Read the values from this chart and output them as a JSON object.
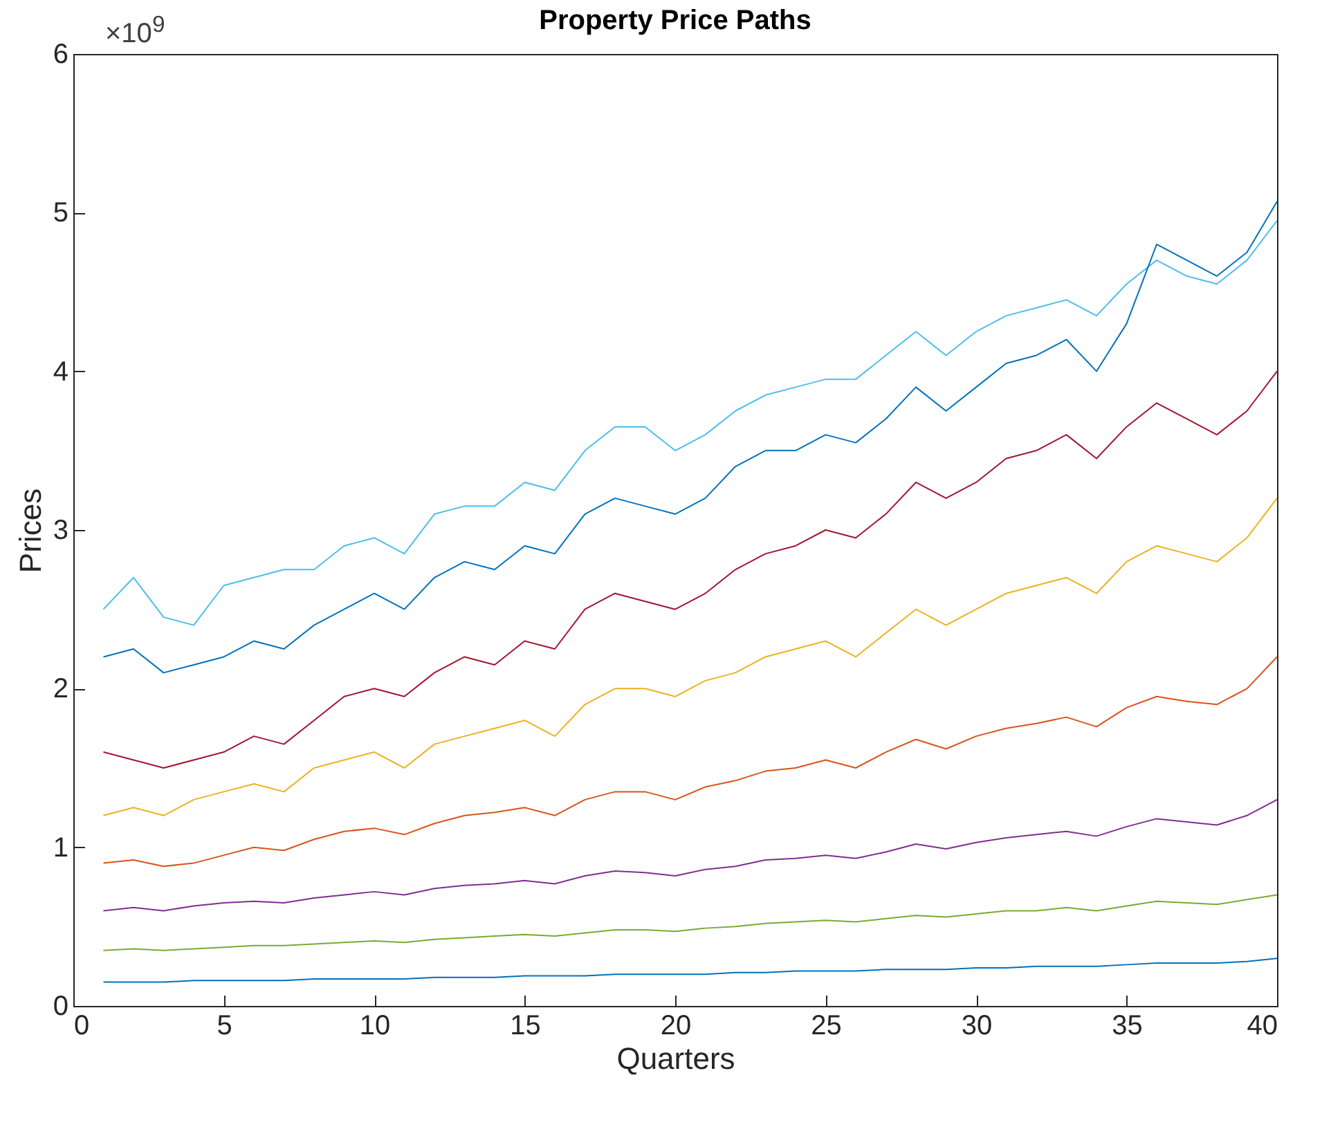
{
  "chart_data": {
    "type": "line",
    "title": "Property Price Paths",
    "xlabel": "Quarters",
    "ylabel": "Prices",
    "annotations": [
      "×10$^{9}$"
    ],
    "x": [
      1,
      2,
      3,
      4,
      5,
      6,
      7,
      8,
      9,
      10,
      11,
      12,
      13,
      14,
      15,
      16,
      17,
      18,
      19,
      20,
      21,
      22,
      23,
      24,
      25,
      26,
      27,
      28,
      29,
      30,
      31,
      32,
      33,
      34,
      35,
      36,
      37,
      38,
      39,
      40
    ],
    "xlim": [
      0,
      40
    ],
    "xticks": [
      0,
      5,
      10,
      15,
      20,
      25,
      30,
      35,
      40
    ],
    "ylim": [
      0,
      6
    ],
    "yticks": [
      0,
      1,
      2,
      3,
      4,
      5,
      6
    ],
    "grid": false,
    "legend": false,
    "series": [
      {
        "color": "#4dbeee",
        "values": [
          2.5,
          2.7,
          2.45,
          2.4,
          2.65,
          2.7,
          2.75,
          2.75,
          2.9,
          2.95,
          2.85,
          3.1,
          3.15,
          3.15,
          3.3,
          3.25,
          3.5,
          3.65,
          3.65,
          3.5,
          3.6,
          3.75,
          3.85,
          3.9,
          3.95,
          3.95,
          4.1,
          4.25,
          4.1,
          4.25,
          4.35,
          4.4,
          4.45,
          4.35,
          4.55,
          4.7,
          4.6,
          4.55,
          4.7,
          4.95
        ]
      },
      {
        "color": "#0072bd",
        "values": [
          2.2,
          2.25,
          2.1,
          2.15,
          2.2,
          2.3,
          2.25,
          2.4,
          2.5,
          2.6,
          2.5,
          2.7,
          2.8,
          2.75,
          2.9,
          2.85,
          3.1,
          3.2,
          3.15,
          3.1,
          3.2,
          3.4,
          3.5,
          3.5,
          3.6,
          3.55,
          3.7,
          3.9,
          3.75,
          3.9,
          4.05,
          4.1,
          4.2,
          4.0,
          4.3,
          4.8,
          4.7,
          4.6,
          4.75,
          5.07
        ]
      },
      {
        "color": "#a2142f",
        "values": [
          1.6,
          1.55,
          1.5,
          1.55,
          1.6,
          1.7,
          1.65,
          1.8,
          1.95,
          2.0,
          1.95,
          2.1,
          2.2,
          2.15,
          2.3,
          2.25,
          2.5,
          2.6,
          2.55,
          2.5,
          2.6,
          2.75,
          2.85,
          2.9,
          3.0,
          2.95,
          3.1,
          3.3,
          3.2,
          3.3,
          3.45,
          3.5,
          3.6,
          3.45,
          3.65,
          3.8,
          3.7,
          3.6,
          3.75,
          4.0
        ]
      },
      {
        "color": "#edb120",
        "values": [
          1.2,
          1.25,
          1.2,
          1.3,
          1.35,
          1.4,
          1.35,
          1.5,
          1.55,
          1.6,
          1.5,
          1.65,
          1.7,
          1.75,
          1.8,
          1.7,
          1.9,
          2.0,
          2.0,
          1.95,
          2.05,
          2.1,
          2.2,
          2.25,
          2.3,
          2.2,
          2.35,
          2.5,
          2.4,
          2.5,
          2.6,
          2.65,
          2.7,
          2.6,
          2.8,
          2.9,
          2.85,
          2.8,
          2.95,
          3.2
        ]
      },
      {
        "color": "#d95319",
        "values": [
          0.9,
          0.92,
          0.88,
          0.9,
          0.95,
          1.0,
          0.98,
          1.05,
          1.1,
          1.12,
          1.08,
          1.15,
          1.2,
          1.22,
          1.25,
          1.2,
          1.3,
          1.35,
          1.35,
          1.3,
          1.38,
          1.42,
          1.48,
          1.5,
          1.55,
          1.5,
          1.6,
          1.68,
          1.62,
          1.7,
          1.75,
          1.78,
          1.82,
          1.76,
          1.88,
          1.95,
          1.92,
          1.9,
          2.0,
          2.2
        ]
      },
      {
        "color": "#7e2f8e",
        "values": [
          0.6,
          0.62,
          0.6,
          0.63,
          0.65,
          0.66,
          0.65,
          0.68,
          0.7,
          0.72,
          0.7,
          0.74,
          0.76,
          0.77,
          0.79,
          0.77,
          0.82,
          0.85,
          0.84,
          0.82,
          0.86,
          0.88,
          0.92,
          0.93,
          0.95,
          0.93,
          0.97,
          1.02,
          0.99,
          1.03,
          1.06,
          1.08,
          1.1,
          1.07,
          1.13,
          1.18,
          1.16,
          1.14,
          1.2,
          1.3
        ]
      },
      {
        "color": "#77ac30",
        "values": [
          0.35,
          0.36,
          0.35,
          0.36,
          0.37,
          0.38,
          0.38,
          0.39,
          0.4,
          0.41,
          0.4,
          0.42,
          0.43,
          0.44,
          0.45,
          0.44,
          0.46,
          0.48,
          0.48,
          0.47,
          0.49,
          0.5,
          0.52,
          0.53,
          0.54,
          0.53,
          0.55,
          0.57,
          0.56,
          0.58,
          0.6,
          0.6,
          0.62,
          0.6,
          0.63,
          0.66,
          0.65,
          0.64,
          0.67,
          0.7
        ]
      },
      {
        "color": "#0072bd",
        "values": [
          0.15,
          0.15,
          0.15,
          0.16,
          0.16,
          0.16,
          0.16,
          0.17,
          0.17,
          0.17,
          0.17,
          0.18,
          0.18,
          0.18,
          0.19,
          0.19,
          0.19,
          0.2,
          0.2,
          0.2,
          0.2,
          0.21,
          0.21,
          0.22,
          0.22,
          0.22,
          0.23,
          0.23,
          0.23,
          0.24,
          0.24,
          0.25,
          0.25,
          0.25,
          0.26,
          0.27,
          0.27,
          0.27,
          0.28,
          0.3
        ]
      }
    ]
  }
}
